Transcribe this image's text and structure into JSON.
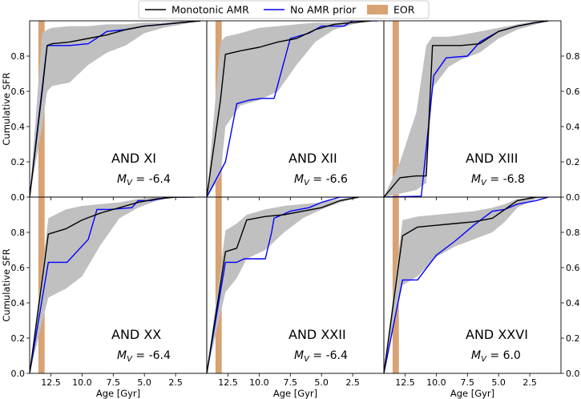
{
  "legend": {
    "position": "top-center",
    "entries": [
      {
        "label": "Monotonic AMR",
        "color": "#000000",
        "kind": "line"
      },
      {
        "label": "No AMR prior",
        "color": "#0000ff",
        "kind": "line"
      },
      {
        "label": "EOR",
        "color": "#d8a273",
        "kind": "patch"
      }
    ]
  },
  "chart_data": {
    "type": "line",
    "layout": "2x3 grid of panels sharing axes",
    "xlabel": "Age [Gyr]",
    "ylabel": "Cumulative SFR",
    "xlim": [
      14.2,
      0
    ],
    "ylim": [
      0,
      1
    ],
    "xticks": [
      12.5,
      10.0,
      7.5,
      5.0,
      2.5
    ],
    "xtick_labels": [
      "12.5",
      "10.0",
      "7.5",
      "5.0",
      "2.5"
    ],
    "yticks": [
      0,
      0.2,
      0.4,
      0.6,
      0.8
    ],
    "ytick_labels": [
      "0.0",
      "0.2",
      "0.4",
      "0.6",
      "0.8"
    ],
    "colors": {
      "monotonic": "#000000",
      "noamr": "#0000ff",
      "band": "#c0c0c0",
      "eor": "#d8a273"
    },
    "eor_band": [
      13.5,
      13.0
    ],
    "panels": [
      {
        "name": "AND XI",
        "mv_label": "M",
        "mv_sub": "V",
        "mv_value": " = -6.4",
        "series": [
          {
            "name": "Monotonic AMR",
            "x": [
              14.2,
              13.2,
              12.8,
              12.4,
              11.0,
              9.5,
              8.0,
              6.5,
              5.0,
              3.5,
              2.0,
              0.5
            ],
            "y": [
              0,
              0.6,
              0.86,
              0.87,
              0.88,
              0.9,
              0.92,
              0.95,
              0.97,
              0.98,
              0.99,
              1.0
            ]
          },
          {
            "name": "No AMR prior",
            "x": [
              14.2,
              12.8,
              11.0,
              9.5,
              8.0,
              6.5,
              5.0,
              3.5,
              2.0,
              0.5
            ],
            "y": [
              0,
              0.86,
              0.86,
              0.87,
              0.94,
              0.95,
              0.97,
              0.98,
              0.99,
              1.0
            ]
          }
        ],
        "band_x": [
          14.2,
          13.2,
          12.8,
          12.4,
          11.0,
          9.5,
          8.0,
          6.5,
          5.0,
          3.5,
          2.0,
          0.5
        ],
        "band_upper": [
          0,
          0.93,
          0.95,
          0.96,
          0.97,
          0.97,
          0.98,
          0.98,
          0.99,
          0.99,
          1.0,
          1.0
        ],
        "band_lower": [
          0,
          0.4,
          0.6,
          0.63,
          0.65,
          0.75,
          0.82,
          0.86,
          0.93,
          0.96,
          0.98,
          1.0
        ]
      },
      {
        "name": "AND XII",
        "mv_label": "M",
        "mv_sub": "V",
        "mv_value": " = -6.6",
        "series": [
          {
            "name": "Monotonic AMR",
            "x": [
              14.2,
              13.1,
              12.7,
              11.5,
              10.0,
              8.5,
              7.0,
              5.5,
              4.0,
              2.5,
              1.0
            ],
            "y": [
              0,
              0.55,
              0.81,
              0.83,
              0.85,
              0.88,
              0.9,
              0.95,
              0.98,
              0.99,
              1.0
            ]
          },
          {
            "name": "No AMR prior",
            "x": [
              14.2,
              12.7,
              11.8,
              10.8,
              9.8,
              8.8,
              7.5,
              6.0,
              5.0,
              3.2,
              2.5,
              0.5
            ],
            "y": [
              0,
              0.2,
              0.53,
              0.55,
              0.56,
              0.56,
              0.9,
              0.93,
              0.97,
              0.97,
              1.0,
              1.0
            ]
          }
        ],
        "band_x": [
          14.2,
          13.1,
          12.7,
          11.5,
          10.0,
          8.5,
          7.0,
          5.5,
          4.0,
          2.5,
          1.0
        ],
        "band_upper": [
          0,
          0.88,
          0.91,
          0.93,
          0.96,
          0.97,
          0.98,
          0.99,
          0.99,
          1.0,
          1.0
        ],
        "band_lower": [
          0,
          0.12,
          0.4,
          0.52,
          0.55,
          0.6,
          0.75,
          0.88,
          0.95,
          0.98,
          1.0
        ]
      },
      {
        "name": "AND XIII",
        "mv_label": "M",
        "mv_sub": "V",
        "mv_value": " = -6.8",
        "series": [
          {
            "name": "Monotonic AMR",
            "x": [
              14.2,
              12.9,
              11.6,
              10.8,
              10.3,
              8.0,
              6.5,
              5.0,
              3.5,
              2.0,
              1.0
            ],
            "y": [
              0,
              0.11,
              0.12,
              0.12,
              0.86,
              0.86,
              0.87,
              0.94,
              0.97,
              0.99,
              1.0
            ]
          },
          {
            "name": "No AMR prior",
            "x": [
              14.2,
              11.2,
              10.2,
              9.2,
              7.5,
              6.5,
              5.0,
              3.5,
              2.0,
              1.0
            ],
            "y": [
              0,
              0.005,
              0.69,
              0.79,
              0.8,
              0.88,
              0.94,
              0.97,
              0.99,
              1.0
            ]
          }
        ],
        "band_x": [
          14.2,
          12.9,
          11.6,
          10.8,
          10.3,
          9.0,
          8.0,
          6.5,
          5.0,
          3.5,
          2.0,
          1.0
        ],
        "band_upper": [
          0,
          0.2,
          0.48,
          0.86,
          0.91,
          0.91,
          0.92,
          0.94,
          0.96,
          0.98,
          1.0,
          1.0
        ],
        "band_lower": [
          0,
          0.02,
          0.04,
          0.08,
          0.62,
          0.74,
          0.78,
          0.82,
          0.9,
          0.95,
          0.98,
          1.0
        ]
      },
      {
        "name": "AND XX",
        "mv_label": "M",
        "mv_sub": "V",
        "mv_value": " = -6.4",
        "series": [
          {
            "name": "Monotonic AMR",
            "x": [
              14.2,
              12.7,
              11.3,
              10.0,
              8.5,
              7.0,
              5.5,
              4.0,
              2.5,
              1.0
            ],
            "y": [
              0,
              0.79,
              0.82,
              0.87,
              0.91,
              0.94,
              0.97,
              0.99,
              1.0,
              1.0
            ]
          },
          {
            "name": "No AMR prior",
            "x": [
              14.2,
              12.7,
              11.2,
              9.5,
              8.8,
              7.8,
              6.0,
              5.5,
              4.5,
              3.0,
              1.5
            ],
            "y": [
              0,
              0.63,
              0.63,
              0.76,
              0.93,
              0.93,
              0.94,
              0.98,
              0.98,
              1.0,
              1.0
            ]
          }
        ],
        "band_x": [
          14.2,
          12.7,
          11.3,
          10.0,
          8.5,
          7.0,
          5.5,
          4.0,
          2.5,
          1.0
        ],
        "band_upper": [
          0,
          0.88,
          0.93,
          0.95,
          0.96,
          0.97,
          0.99,
          1.0,
          1.0,
          1.0
        ],
        "band_lower": [
          0,
          0.43,
          0.48,
          0.55,
          0.73,
          0.88,
          0.94,
          0.98,
          1.0,
          1.0
        ]
      },
      {
        "name": "AND XXII",
        "mv_label": "M",
        "mv_sub": "V",
        "mv_value": " = -6.4",
        "series": [
          {
            "name": "Monotonic AMR",
            "x": [
              14.2,
              12.7,
              11.8,
              11.0,
              9.5,
              8.0,
              6.5,
              5.0,
              3.5,
              2.0
            ],
            "y": [
              0,
              0.69,
              0.71,
              0.87,
              0.89,
              0.9,
              0.92,
              0.94,
              0.98,
              1.0
            ]
          },
          {
            "name": "No AMR prior",
            "x": [
              14.2,
              12.7,
              11.8,
              11.2,
              9.5,
              9.0,
              8.8,
              7.5,
              6.0,
              5.0,
              3.5,
              2.0
            ],
            "y": [
              0,
              0.63,
              0.63,
              0.65,
              0.65,
              0.8,
              0.88,
              0.92,
              0.94,
              0.97,
              1.0,
              1.0
            ]
          }
        ],
        "band_x": [
          14.2,
          12.7,
          11.8,
          11.0,
          9.5,
          8.0,
          6.5,
          5.0,
          3.5,
          2.0
        ],
        "band_upper": [
          0,
          0.81,
          0.85,
          0.9,
          0.93,
          0.95,
          0.96,
          0.97,
          0.99,
          1.0
        ],
        "band_lower": [
          0,
          0.46,
          0.54,
          0.65,
          0.7,
          0.8,
          0.88,
          0.93,
          0.97,
          1.0
        ]
      },
      {
        "name": "AND XXVI",
        "mv_label": "M",
        "mv_sub": "V",
        "mv_value": " = 6.0",
        "series": [
          {
            "name": "Monotonic AMR",
            "x": [
              14.2,
              12.7,
              11.5,
              10.0,
              8.5,
              7.0,
              5.5,
              4.5,
              3.5,
              2.0,
              1.0
            ],
            "y": [
              0,
              0.78,
              0.83,
              0.84,
              0.85,
              0.86,
              0.88,
              0.93,
              0.98,
              1.0,
              1.0
            ]
          },
          {
            "name": "No AMR prior",
            "x": [
              14.2,
              12.7,
              11.5,
              10.0,
              8.5,
              7.0,
              5.5,
              4.5,
              3.5,
              2.0,
              1.0
            ],
            "y": [
              0,
              0.53,
              0.53,
              0.67,
              0.75,
              0.84,
              0.92,
              0.93,
              0.96,
              0.98,
              1.0
            ]
          }
        ],
        "band_x": [
          14.2,
          12.7,
          11.5,
          10.0,
          8.5,
          7.0,
          5.5,
          4.5,
          3.5,
          2.0,
          1.0
        ],
        "band_upper": [
          0,
          0.87,
          0.89,
          0.9,
          0.91,
          0.92,
          0.94,
          0.96,
          0.99,
          1.0,
          1.0
        ],
        "band_lower": [
          0,
          0.5,
          0.55,
          0.66,
          0.72,
          0.76,
          0.8,
          0.86,
          0.94,
          0.99,
          1.0
        ]
      }
    ]
  }
}
